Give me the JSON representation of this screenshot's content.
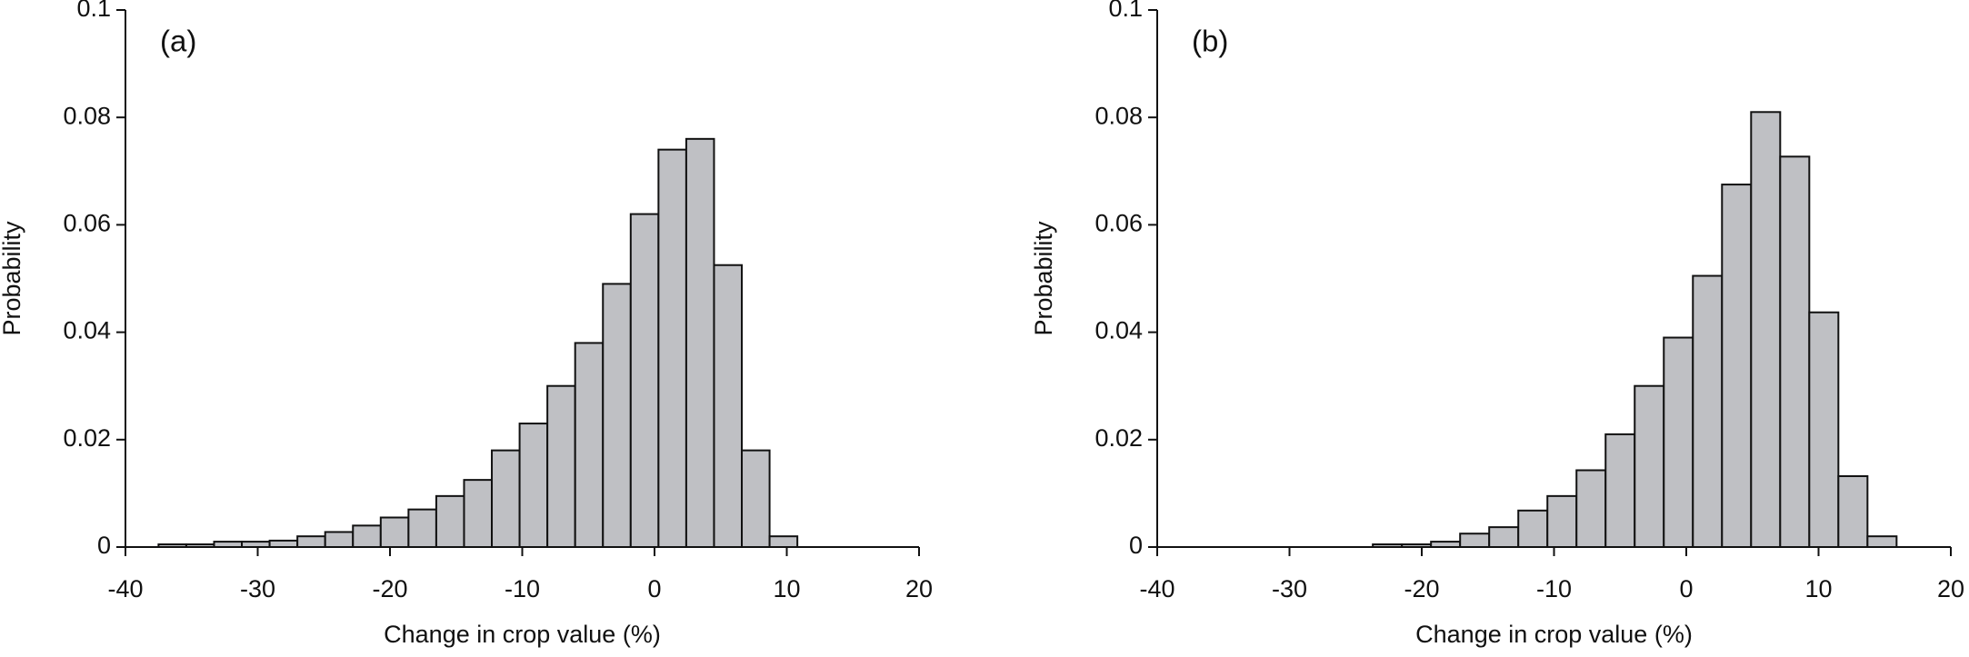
{
  "chart_data": [
    {
      "type": "histogram",
      "label": "(a)",
      "xlabel": "Change in crop value (%)",
      "ylabel": "Probability",
      "bins": [
        -37.5,
        -35.4,
        -33.3,
        -31.2,
        -29.1,
        -27,
        -24.9,
        -22.8,
        -20.7,
        -18.6,
        -16.5,
        -14.4,
        -12.3,
        -10.2,
        -8.1,
        -6,
        -3.9,
        -1.8,
        0.3,
        2.4,
        4.5,
        6.6,
        8.7,
        10.8
      ],
      "values": [
        0.0005,
        0.0005,
        0.001,
        0.001,
        0.0012,
        0.002,
        0.0028,
        0.004,
        0.0055,
        0.007,
        0.0095,
        0.0125,
        0.018,
        0.023,
        0.03,
        0.038,
        0.049,
        0.062,
        0.074,
        0.076,
        0.0525,
        0.018,
        0.002
      ],
      "color": "#bfc0c4",
      "xlim": [
        -40,
        20
      ],
      "ylim": [
        0,
        0.1
      ],
      "xticks": [
        -40,
        -30,
        -20,
        -10,
        0,
        10,
        20
      ],
      "yticks": [
        0,
        0.02,
        0.04,
        0.06,
        0.08,
        0.1
      ]
    },
    {
      "type": "histogram",
      "label": "(b)",
      "xlabel": "Change in crop value (%)",
      "ylabel": "Probability",
      "bins": [
        -23.7,
        -21.5,
        -19.3,
        -17.1,
        -14.9,
        -12.7,
        -10.5,
        -8.3,
        -6.1,
        -3.9,
        -1.7,
        0.5,
        2.7,
        4.9,
        7.1,
        9.3,
        11.5,
        13.7,
        15.9
      ],
      "values": [
        0.0005,
        0.0005,
        0.001,
        0.0025,
        0.0037,
        0.0068,
        0.0095,
        0.0143,
        0.021,
        0.03,
        0.039,
        0.0505,
        0.0675,
        0.081,
        0.0727,
        0.0437,
        0.0132,
        0.002
      ],
      "color": "#bfc0c4",
      "xlim": [
        -40,
        20
      ],
      "ylim": [
        0,
        0.1
      ],
      "xticks": [
        -40,
        -30,
        -20,
        -10,
        0,
        10,
        20
      ],
      "yticks": [
        0,
        0.02,
        0.04,
        0.06,
        0.08,
        0.1
      ]
    }
  ]
}
